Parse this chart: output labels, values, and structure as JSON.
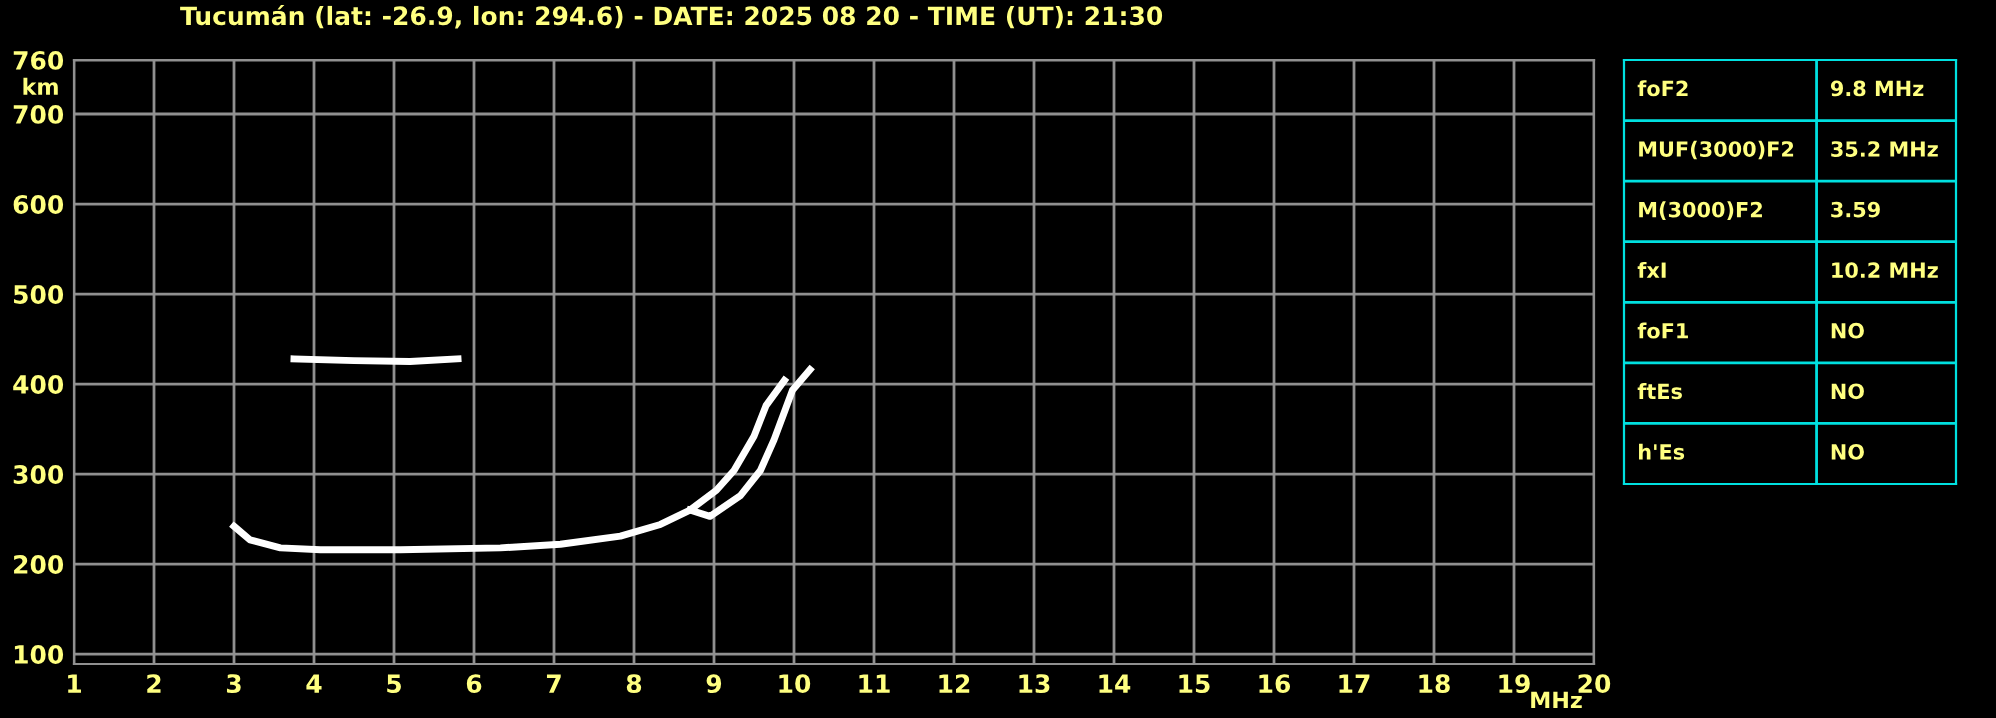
{
  "chart_data": [
    {
      "type": "line",
      "title": "Tucumán (lat: -26.9, lon: 294.6) - DATE: 2025 08 20 - TIME (UT): 21:30",
      "xlabel": "MHz",
      "ylabel": "km",
      "xlim": [
        1,
        20
      ],
      "ylim": [
        89,
        760
      ],
      "xticks": [
        1,
        2,
        3,
        4,
        5,
        6,
        7,
        8,
        9,
        10,
        11,
        12,
        13,
        14,
        15,
        16,
        17,
        18,
        19,
        20
      ],
      "yticks": [
        100,
        200,
        300,
        400,
        500,
        600,
        700,
        760
      ],
      "grid": true,
      "series": [
        {
          "color": "#ffffff",
          "x": [
            3.0,
            3.2,
            3.58,
            4.08,
            5.08,
            6.33,
            7.08,
            7.83,
            8.33,
            8.7,
            9.03,
            9.25,
            9.5,
            9.65,
            9.88
          ],
          "values": [
            242,
            227,
            218,
            216,
            216,
            218,
            222,
            231,
            244,
            260,
            282,
            304,
            342,
            376,
            404
          ]
        },
        {
          "color": "#ffffff",
          "x": [
            8.7,
            8.95,
            9.33,
            9.58,
            9.75,
            9.88,
            9.98,
            10.2
          ],
          "values": [
            260,
            253,
            276,
            304,
            338,
            369,
            393,
            416
          ]
        },
        {
          "color": "#ffffff",
          "x": [
            3.75,
            4.5,
            5.2,
            5.8
          ],
          "values": [
            428,
            426,
            425,
            428
          ]
        }
      ]
    },
    {
      "type": "other",
      "annotations": [
        "foF2",
        "9.8 MHz",
        "MUF(3000)F2",
        "35.2 MHz",
        "M(3000)F2",
        "3.59",
        "fxI",
        "10.2 MHz",
        "foF1",
        "NO",
        "ftEs",
        "NO",
        "h'Es",
        "NO"
      ]
    }
  ]
}
